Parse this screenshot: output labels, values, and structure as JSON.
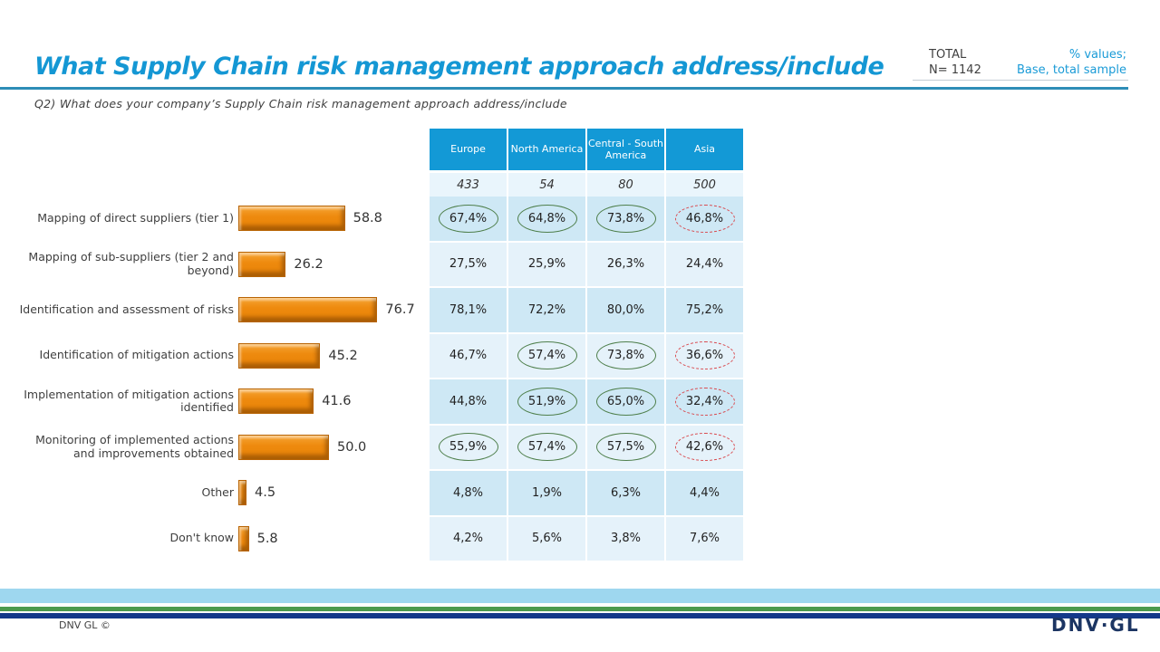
{
  "header": {
    "title": "What Supply Chain risk management approach address/include",
    "total_label": "TOTAL",
    "total_n": "N= 1142",
    "note_line1": "% values;",
    "note_line2": "Base, total sample",
    "subtitle": "Q2) What does your company’s Supply Chain risk management approach address/include"
  },
  "chart_data": {
    "type": "bar",
    "orientation": "horizontal",
    "title": "What Supply Chain risk management approach address/include",
    "xlabel": "",
    "ylabel": "",
    "xlim": [
      0,
      80
    ],
    "grid": false,
    "bar_color": "#ee8a0e",
    "categories": [
      "Mapping of direct suppliers (tier 1)",
      "Mapping of sub-suppliers (tier 2 and beyond)",
      "Identification and assessment of risks",
      "Identification of mitigation actions",
      "Implementation of mitigation actions identified",
      "Monitoring of implemented actions and improvements obtained",
      "Other",
      "Don't know"
    ],
    "values": [
      58.8,
      26.2,
      76.7,
      45.2,
      41.6,
      50.0,
      4.5,
      5.8
    ],
    "value_labels": [
      "58.8",
      "26.2",
      "76.7",
      "45.2",
      "41.6",
      "50.0",
      "4.5",
      "5.8"
    ]
  },
  "table": {
    "columns": [
      "Europe",
      "North America",
      "Central - South America",
      "Asia"
    ],
    "base_values": [
      "433",
      "54",
      "80",
      "500"
    ],
    "highlight_colors": {
      "green": "#4e7f4b",
      "red": "#d94b50"
    },
    "rows": [
      {
        "cells": [
          {
            "v": "67,4%",
            "h": "green"
          },
          {
            "v": "64,8%",
            "h": "green"
          },
          {
            "v": "73,8%",
            "h": "green"
          },
          {
            "v": "46,8%",
            "h": "red"
          }
        ]
      },
      {
        "cells": [
          {
            "v": "27,5%",
            "h": null
          },
          {
            "v": "25,9%",
            "h": null
          },
          {
            "v": "26,3%",
            "h": null
          },
          {
            "v": "24,4%",
            "h": null
          }
        ]
      },
      {
        "cells": [
          {
            "v": "78,1%",
            "h": null
          },
          {
            "v": "72,2%",
            "h": null
          },
          {
            "v": "80,0%",
            "h": null
          },
          {
            "v": "75,2%",
            "h": null
          }
        ]
      },
      {
        "cells": [
          {
            "v": "46,7%",
            "h": null
          },
          {
            "v": "57,4%",
            "h": "green"
          },
          {
            "v": "73,8%",
            "h": "green"
          },
          {
            "v": "36,6%",
            "h": "red"
          }
        ]
      },
      {
        "cells": [
          {
            "v": "44,8%",
            "h": null
          },
          {
            "v": "51,9%",
            "h": "green"
          },
          {
            "v": "65,0%",
            "h": "green"
          },
          {
            "v": "32,4%",
            "h": "red"
          }
        ]
      },
      {
        "cells": [
          {
            "v": "55,9%",
            "h": "green"
          },
          {
            "v": "57,4%",
            "h": "green"
          },
          {
            "v": "57,5%",
            "h": "green"
          },
          {
            "v": "42,6%",
            "h": "red"
          }
        ]
      },
      {
        "cells": [
          {
            "v": "4,8%",
            "h": null
          },
          {
            "v": "1,9%",
            "h": null
          },
          {
            "v": "6,3%",
            "h": null
          },
          {
            "v": "4,4%",
            "h": null
          }
        ]
      },
      {
        "cells": [
          {
            "v": "4,2%",
            "h": null
          },
          {
            "v": "5,6%",
            "h": null
          },
          {
            "v": "3,8%",
            "h": null
          },
          {
            "v": "7,6%",
            "h": null
          }
        ]
      }
    ]
  },
  "footer": {
    "copyright": "DNV GL ©",
    "logo": "DNV·GL"
  }
}
